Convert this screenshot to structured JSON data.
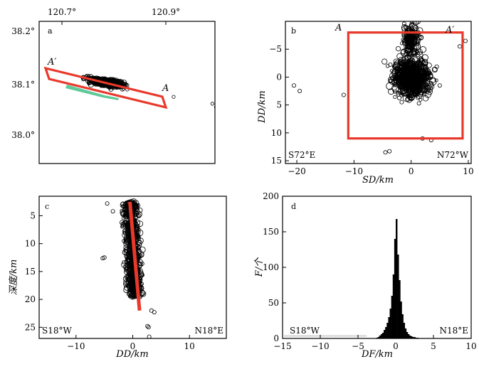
{
  "chart_data": [
    {
      "panel": "a",
      "type": "scatter",
      "x_ticks": [
        "120.7°",
        "120.9°"
      ],
      "y_ticks": [
        "38.2°",
        "38.1°",
        "38.0°"
      ],
      "x_range": [
        120.63,
        120.97
      ],
      "y_range": [
        37.93,
        38.22
      ],
      "profile_labels": [
        "A′",
        "A"
      ],
      "profile_line": {
        "from": [
          120.635,
          38.112
        ],
        "to": [
          120.885,
          38.072
        ]
      },
      "cluster_center": [
        120.76,
        38.095
      ],
      "outliers": [
        [
          120.965,
          38.052
        ],
        [
          120.972,
          38.045
        ],
        [
          120.89,
          38.066
        ]
      ],
      "colors": {
        "box": "#e8392b",
        "fault": "#5fc99a"
      }
    },
    {
      "panel": "b",
      "type": "scatter",
      "xlabel": "SD/km",
      "ylabel": "DD/km",
      "x_ticks": [
        "−20",
        "−10",
        "0",
        "10"
      ],
      "y_ticks": [
        "−5",
        "0",
        "5",
        "10",
        "15"
      ],
      "x_range": [
        -22,
        10.5
      ],
      "y_range": [
        -10,
        15.5
      ],
      "y_inverted": true,
      "box": {
        "x": [
          -11,
          9
        ],
        "y": [
          -8,
          11
        ]
      },
      "profile_labels": [
        "A",
        "A′"
      ],
      "corner_left": "S72°E",
      "corner_right": "N72°W",
      "outliers": [
        [
          -20.5,
          1.5
        ],
        [
          -19.5,
          2.5
        ],
        [
          -11.8,
          3.2
        ],
        [
          -4.5,
          13.5
        ],
        [
          -3.8,
          13.3
        ],
        [
          8.5,
          -5.5
        ],
        [
          9.5,
          -6.5
        ],
        [
          5,
          1.5
        ],
        [
          2,
          11
        ],
        [
          3.5,
          11.3
        ]
      ]
    },
    {
      "panel": "c",
      "type": "scatter",
      "xlabel": "DD/km",
      "ylabel": "深度/km",
      "x_ticks": [
        "−10",
        "0",
        "10"
      ],
      "y_ticks": [
        "5",
        "10",
        "15",
        "20",
        "25"
      ],
      "x_range": [
        -16.5,
        16.5
      ],
      "y_range": [
        1.5,
        27
      ],
      "y_inverted": true,
      "fault_line": {
        "from": [
          -0.5,
          2.5
        ],
        "to": [
          1.2,
          22
        ]
      },
      "corner_left": "S18°W",
      "corner_right": "N18°E",
      "outliers": [
        [
          -4.5,
          2.8
        ],
        [
          -3.5,
          4.2
        ],
        [
          -5,
          12.5
        ],
        [
          -5.3,
          12.6
        ],
        [
          3.3,
          22
        ],
        [
          3.8,
          22.3
        ],
        [
          2.6,
          24.8
        ],
        [
          2.8,
          25
        ],
        [
          2.9,
          26.7
        ]
      ]
    },
    {
      "panel": "d",
      "type": "bar",
      "xlabel": "DF/km",
      "ylabel": "F/个",
      "x_ticks": [
        "−15",
        "−10",
        "−5",
        "0",
        "5",
        "10"
      ],
      "y_ticks": [
        "0",
        "50",
        "100",
        "150",
        "200"
      ],
      "x_range": [
        -15,
        10
      ],
      "y_range": [
        0,
        200
      ],
      "bin_width": 0.2,
      "bin_starts": [
        -2.6,
        -2.4,
        -2.2,
        -2.0,
        -1.8,
        -1.6,
        -1.4,
        -1.2,
        -1.0,
        -0.8,
        -0.6,
        -0.4,
        -0.2,
        0.0,
        0.2,
        0.4,
        0.6,
        0.8,
        1.0,
        1.2,
        1.4,
        1.6,
        1.8,
        2.0,
        2.2,
        2.4,
        2.6,
        2.8
      ],
      "counts": [
        1,
        2,
        4,
        6,
        8,
        12,
        16,
        22,
        30,
        42,
        60,
        90,
        140,
        168,
        118,
        82,
        52,
        34,
        22,
        14,
        9,
        6,
        4,
        3,
        2,
        2,
        1,
        1
      ],
      "corner_left": "S18°W",
      "corner_right": "N18°E"
    }
  ]
}
